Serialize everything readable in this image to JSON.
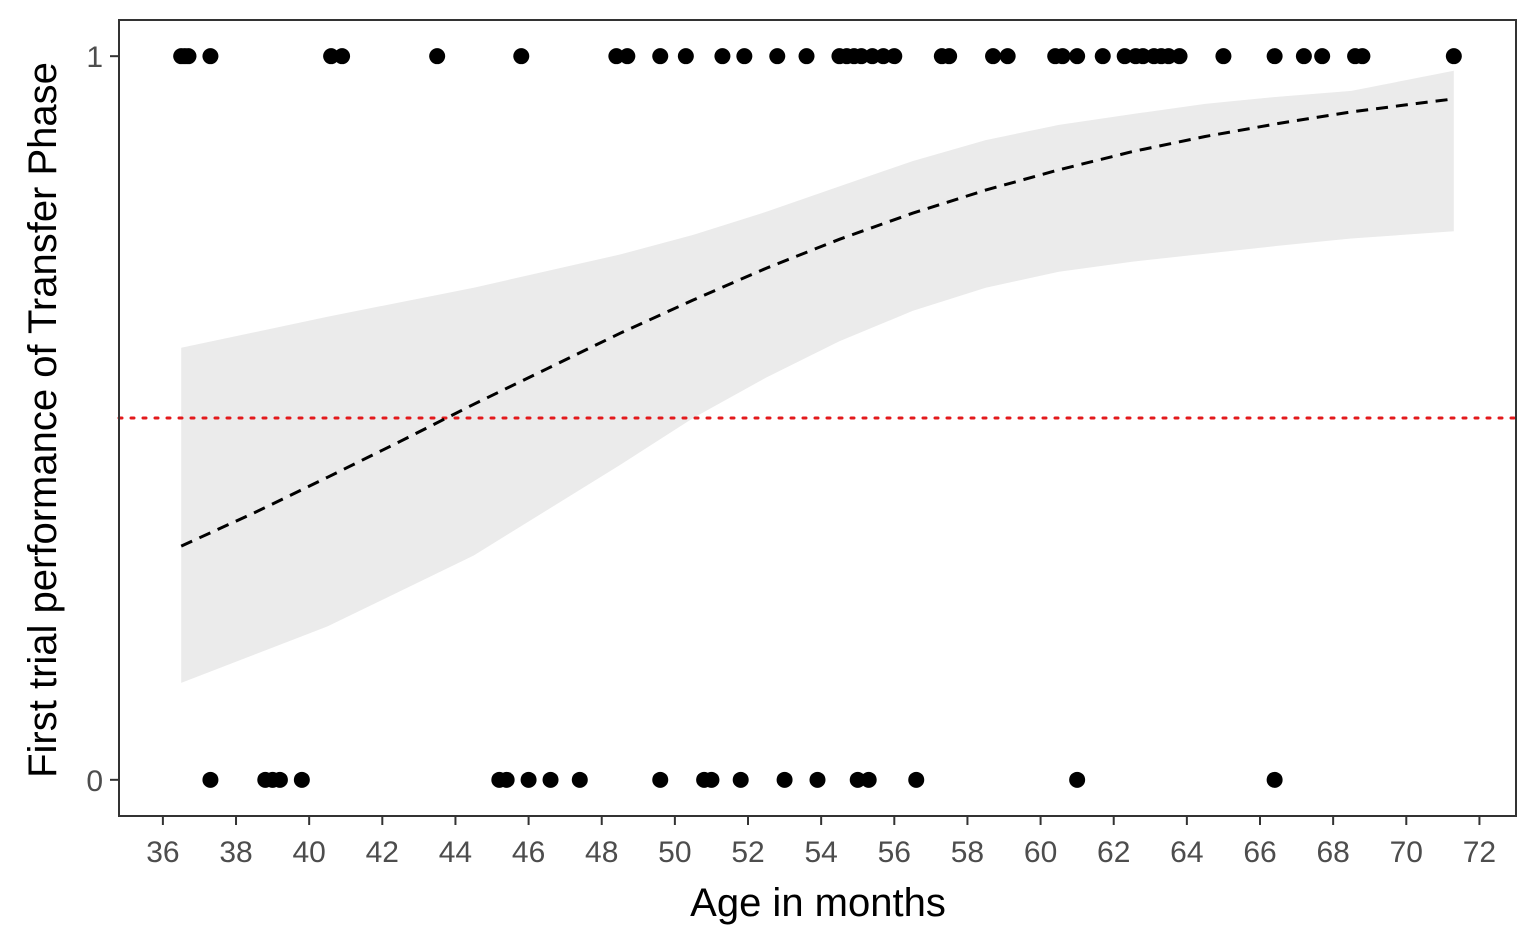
{
  "chart_data": {
    "type": "scatter",
    "title": "",
    "xlabel": "Age in months",
    "ylabel": "First trial performance of Transfer Phase",
    "xlim": [
      34.8,
      73.0
    ],
    "ylim": [
      -0.05,
      1.05
    ],
    "x_ticks": [
      36,
      38,
      40,
      42,
      44,
      46,
      48,
      50,
      52,
      54,
      56,
      58,
      60,
      62,
      64,
      66,
      68,
      70,
      72
    ],
    "y_ticks": [
      0,
      1
    ],
    "grid": false,
    "legend": "none",
    "points": {
      "outcome_1_ages": [
        36.5,
        36.6,
        36.7,
        37.3,
        40.6,
        40.9,
        43.5,
        45.8,
        48.4,
        48.7,
        49.6,
        50.3,
        51.3,
        51.9,
        52.8,
        53.6,
        54.5,
        54.7,
        54.9,
        55.1,
        55.4,
        55.7,
        56.0,
        57.3,
        57.5,
        58.7,
        59.1,
        60.4,
        60.6,
        61.0,
        61.7,
        62.3,
        62.6,
        62.8,
        63.1,
        63.3,
        63.5,
        63.8,
        65.0,
        66.4,
        67.2,
        67.7,
        68.6,
        68.8,
        71.3
      ],
      "outcome_0_ages": [
        37.3,
        38.8,
        39.0,
        39.2,
        39.8,
        45.2,
        45.4,
        46.0,
        46.6,
        47.4,
        49.6,
        50.8,
        51.0,
        51.8,
        53.0,
        53.9,
        55.0,
        55.3,
        56.6,
        61.0,
        66.4
      ]
    },
    "fit_curve": {
      "style": "dashed",
      "color": "#000000",
      "x": [
        36.5,
        38.5,
        40.5,
        42.5,
        44.5,
        46.5,
        48.5,
        50.5,
        52.5,
        54.5,
        56.5,
        58.5,
        60.5,
        62.5,
        64.5,
        66.5,
        68.5,
        70.5,
        71.3
      ],
      "y": [
        0.323,
        0.369,
        0.418,
        0.468,
        0.519,
        0.568,
        0.617,
        0.663,
        0.707,
        0.747,
        0.783,
        0.815,
        0.843,
        0.868,
        0.889,
        0.907,
        0.923,
        0.936,
        0.941
      ]
    },
    "confidence_band": {
      "color": "#ebebeb",
      "x": [
        36.5,
        40.5,
        44.5,
        48.5,
        50.5,
        52.5,
        54.5,
        56.5,
        58.5,
        60.5,
        62.5,
        64.5,
        66.5,
        68.5,
        71.3
      ],
      "lower": [
        0.134,
        0.212,
        0.31,
        0.435,
        0.5,
        0.556,
        0.606,
        0.648,
        0.68,
        0.702,
        0.716,
        0.727,
        0.738,
        0.748,
        0.758
      ],
      "upper": [
        0.597,
        0.64,
        0.68,
        0.726,
        0.753,
        0.785,
        0.82,
        0.855,
        0.884,
        0.905,
        0.92,
        0.934,
        0.944,
        0.952,
        0.98
      ]
    },
    "reference_line": {
      "y": 0.5,
      "style": "dotted",
      "color": "#e31a1c"
    },
    "point_color": "#000000",
    "panel_border_color": "#333333"
  }
}
